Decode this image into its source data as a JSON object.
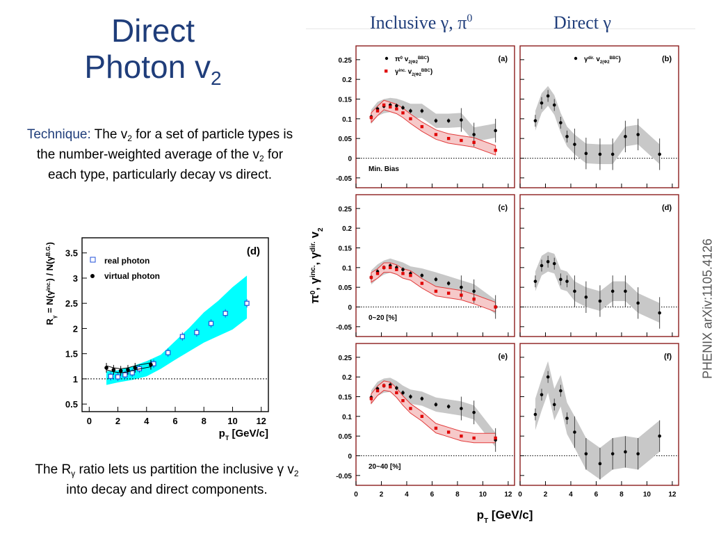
{
  "slide": {
    "title_line1": "Direct",
    "title_line2": "Photon v",
    "title_sub": "2",
    "technique_label": "Technique:",
    "technique_text_a": " The v",
    "technique_text_b": " for a set of particle types is the number-weighted average of the v",
    "technique_text_c": " for each type, particularly decay vs direct.",
    "ratio_text_a": "The R",
    "ratio_text_b": " ratio lets us partition the inclusive ",
    "ratio_text_c": " v",
    "ratio_text_d": " into decay and direct components.",
    "sub2": "2",
    "gamma": "γ",
    "col_head_left": "Inclusive γ, π",
    "col_head_left_sup": "0",
    "col_head_right": "Direct γ",
    "credit": "PHENIX arXiv:1105.4126"
  },
  "chart_data": [
    {
      "type": "scatter",
      "panel_label": "(d)",
      "xlabel": "p_T [GeV/c]",
      "ylabel": "R_γ = N(γ^inc.) / N(γ^B.G.)",
      "xlim": [
        -0.5,
        12.5
      ],
      "ylim": [
        0.35,
        3.8
      ],
      "xticks": [
        0,
        2,
        4,
        6,
        8,
        10,
        12
      ],
      "yticks": [
        0.5,
        1,
        1.5,
        2,
        2.5,
        3,
        3.5
      ],
      "reference_line": 1,
      "band": {
        "color": "#00ffff",
        "x": [
          1.2,
          2.0,
          3.0,
          4.0,
          5.0,
          6.0,
          7.0,
          8.0,
          9.0,
          10.0,
          11.0
        ],
        "low": [
          0.88,
          0.93,
          0.98,
          1.05,
          1.2,
          1.38,
          1.55,
          1.72,
          1.85,
          1.98,
          2.2
        ],
        "high": [
          1.15,
          1.17,
          1.25,
          1.35,
          1.48,
          1.75,
          2.02,
          2.32,
          2.55,
          2.82,
          3.05
        ]
      },
      "series": [
        {
          "name": "real photon",
          "marker": "open-square",
          "color": "#1f4fd8",
          "x": [
            1.5,
            2.0,
            2.5,
            3.0,
            3.5,
            4.5,
            5.5,
            6.5,
            7.5,
            8.5,
            9.5,
            11.0
          ],
          "y": [
            1.05,
            1.04,
            1.08,
            1.12,
            1.2,
            1.3,
            1.52,
            1.84,
            1.92,
            2.1,
            2.3,
            2.5
          ]
        },
        {
          "name": "virtual photon",
          "marker": "dot",
          "color": "#000000",
          "x": [
            1.2,
            1.7,
            2.2,
            2.7,
            3.2,
            4.3
          ],
          "y": [
            1.22,
            1.18,
            1.16,
            1.18,
            1.22,
            1.28
          ]
        }
      ]
    },
    {
      "type": "scatter",
      "xlabel": "p_T [GeV/c]",
      "ylabel": "π^0, γ^inc., γ^dir. v_2",
      "xlim": [
        0,
        12.5
      ],
      "ylim": [
        -0.075,
        0.285
      ],
      "xticks": [
        0,
        2,
        4,
        6,
        8,
        10,
        12
      ],
      "yticks": [
        -0.05,
        0,
        0.05,
        0.1,
        0.15,
        0.2,
        0.25
      ],
      "panels": [
        {
          "label": "(a)",
          "tag": "Min. Bias",
          "legend": [
            "π^0 v_2(Φ_2^BBC)",
            "γ^inc. v_2(Φ_2^BBC)"
          ],
          "pi0": {
            "x": [
              1.2,
              1.7,
              2.2,
              2.7,
              3.2,
              3.7,
              4.3,
              5.2,
              6.3,
              7.3,
              8.3,
              9.3,
              11.0
            ],
            "y": [
              0.105,
              0.125,
              0.132,
              0.135,
              0.133,
              0.128,
              0.12,
              0.12,
              0.095,
              0.095,
              0.097,
              0.06,
              0.07
            ]
          },
          "inc": {
            "x": [
              1.2,
              1.7,
              2.2,
              2.7,
              3.2,
              3.7,
              4.3,
              5.2,
              6.3,
              7.3,
              8.3,
              9.3,
              11.0
            ],
            "y": [
              0.103,
              0.12,
              0.135,
              0.13,
              0.125,
              0.115,
              0.1,
              0.08,
              0.06,
              0.05,
              0.045,
              0.04,
              0.02
            ]
          }
        },
        {
          "label": "(c)",
          "tag": "0~20 [%]",
          "pi0": {
            "x": [
              1.2,
              1.7,
              2.2,
              2.7,
              3.2,
              3.7,
              4.3,
              5.2,
              6.3,
              7.3,
              8.3,
              9.3,
              11.0
            ],
            "y": [
              0.075,
              0.09,
              0.1,
              0.105,
              0.1,
              0.095,
              0.085,
              0.08,
              0.07,
              0.06,
              0.05,
              0.04,
              0.0
            ]
          },
          "inc": {
            "x": [
              1.2,
              1.7,
              2.2,
              2.7,
              3.2,
              3.7,
              4.3,
              5.2,
              6.3,
              7.3,
              8.3,
              9.3,
              11.0
            ],
            "y": [
              0.075,
              0.085,
              0.1,
              0.1,
              0.095,
              0.085,
              0.08,
              0.06,
              0.04,
              0.035,
              0.03,
              0.02,
              0.0
            ]
          }
        },
        {
          "label": "(e)",
          "tag": "20~40 [%]",
          "pi0": {
            "x": [
              1.2,
              1.7,
              2.2,
              2.7,
              3.2,
              3.7,
              4.3,
              5.2,
              6.3,
              7.3,
              8.3,
              9.3,
              11.0
            ],
            "y": [
              0.148,
              0.17,
              0.178,
              0.18,
              0.172,
              0.16,
              0.15,
              0.145,
              0.13,
              0.125,
              0.12,
              0.11,
              0.04
            ]
          },
          "inc": {
            "x": [
              1.2,
              1.7,
              2.2,
              2.7,
              3.2,
              3.7,
              4.3,
              5.2,
              6.3,
              7.3,
              8.3,
              9.3,
              11.0
            ],
            "y": [
              0.145,
              0.165,
              0.178,
              0.175,
              0.16,
              0.14,
              0.12,
              0.1,
              0.07,
              0.06,
              0.05,
              0.045,
              0.045
            ]
          }
        },
        {
          "label": "(b)",
          "legend": [
            "γ^dir. v_2(Φ_2^BBC)"
          ],
          "dir": {
            "x": [
              1.2,
              1.7,
              2.2,
              2.7,
              3.2,
              3.7,
              4.3,
              5.2,
              6.3,
              7.3,
              8.3,
              9.3,
              11.0
            ],
            "y": [
              0.095,
              0.14,
              0.158,
              0.135,
              0.09,
              0.055,
              0.035,
              0.012,
              0.01,
              0.01,
              0.055,
              0.06,
              0.01
            ]
          }
        },
        {
          "label": "(d)",
          "dir": {
            "x": [
              1.2,
              1.7,
              2.2,
              2.7,
              3.2,
              3.7,
              4.3,
              5.2,
              6.3,
              7.3,
              8.3,
              9.3,
              11.0
            ],
            "y": [
              0.065,
              0.105,
              0.115,
              0.11,
              0.07,
              0.065,
              0.04,
              0.025,
              0.015,
              0.04,
              0.04,
              0.01,
              -0.015
            ]
          }
        },
        {
          "label": "(f)",
          "dir": {
            "x": [
              1.2,
              1.7,
              2.2,
              2.7,
              3.2,
              3.7,
              4.3,
              5.2,
              6.3,
              7.3,
              8.3,
              9.3,
              11.0
            ],
            "y": [
              0.105,
              0.155,
              0.2,
              0.13,
              0.165,
              0.095,
              0.06,
              0.005,
              -0.02,
              0.005,
              0.01,
              0.005,
              0.05
            ]
          }
        }
      ]
    }
  ]
}
